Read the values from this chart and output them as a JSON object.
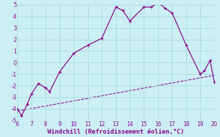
{
  "xlabel": "Windchill (Refroidissement éolien,°C)",
  "xlim": [
    6,
    20
  ],
  "ylim": [
    -5,
    5
  ],
  "xticks": [
    6,
    7,
    8,
    9,
    10,
    11,
    12,
    13,
    14,
    15,
    16,
    17,
    18,
    19,
    20
  ],
  "yticks": [
    -5,
    -4,
    -3,
    -2,
    -1,
    0,
    1,
    2,
    3,
    4,
    5
  ],
  "background_color": "#cceef5",
  "grid_color": "#aadddd",
  "line_color": "#880088",
  "curve_x": [
    6,
    6.3,
    6.7,
    7,
    7.5,
    8,
    8.3,
    9,
    10,
    11,
    12,
    13,
    13.5,
    14,
    15,
    15.5,
    16,
    16.5,
    17,
    18,
    19,
    19.3,
    19.7,
    20
  ],
  "curve_y": [
    -4.0,
    -4.6,
    -3.6,
    -2.7,
    -1.8,
    -2.2,
    -2.5,
    -0.8,
    0.8,
    1.5,
    2.1,
    4.8,
    4.5,
    3.6,
    4.8,
    4.8,
    5.2,
    4.7,
    4.3,
    1.5,
    -1.0,
    -0.7,
    0.2,
    -1.7
  ],
  "trend_x": [
    6,
    20
  ],
  "trend_y": [
    -4.2,
    -1.1
  ]
}
